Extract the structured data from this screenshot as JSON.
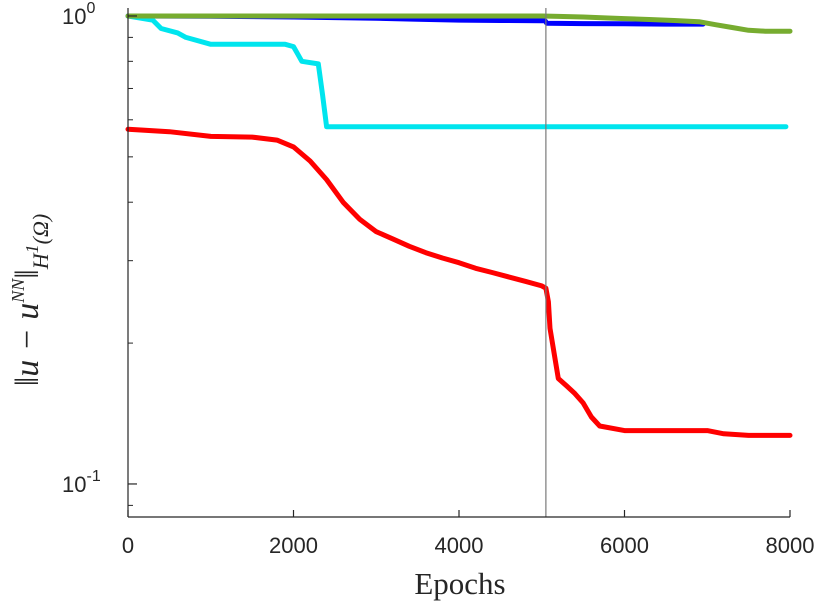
{
  "chart_data": {
    "type": "line",
    "title": "",
    "xlabel": "Epochs",
    "ylabel": {
      "main": "‖u − u",
      "sup": "NN",
      "close": "‖",
      "sub": "H",
      "sub_sup": "1",
      "sub_tail": "(Ω)"
    },
    "xscale": "linear",
    "yscale": "log",
    "xlim": [
      0,
      8000
    ],
    "ylim": [
      0.085,
      1.04
    ],
    "grid": false,
    "legend": "none",
    "x_ticks": [
      {
        "value": 0,
        "label": "0"
      },
      {
        "value": 2000,
        "label": "2000"
      },
      {
        "value": 4000,
        "label": "4000"
      },
      {
        "value": 6000,
        "label": "6000"
      },
      {
        "value": 8000,
        "label": "8000"
      }
    ],
    "y_ticks": [
      {
        "value": 1,
        "base": "10",
        "exp": "0"
      },
      {
        "value": 0.1,
        "base": "10",
        "exp": "-1"
      }
    ],
    "vline": {
      "x": 5050,
      "color": "#7a7a7a"
    },
    "series": [
      {
        "color": "#0000ff",
        "x": [
          0,
          1000,
          2000,
          3000,
          3500,
          4000,
          4500,
          5000,
          5040,
          5060,
          5500,
          6000,
          6500,
          6950
        ],
        "y": [
          1.0,
          0.999,
          0.995,
          0.989,
          0.984,
          0.98,
          0.978,
          0.977,
          0.977,
          0.965,
          0.963,
          0.962,
          0.961,
          0.961
        ]
      },
      {
        "color": "#00e5ee",
        "x": [
          0,
          300,
          400,
          600,
          700,
          1000,
          1900,
          2000,
          2050,
          2100,
          2300,
          2350,
          2400,
          3000,
          4000,
          5000,
          6000,
          7000,
          7950
        ],
        "y": [
          1.0,
          0.98,
          0.94,
          0.92,
          0.9,
          0.87,
          0.87,
          0.86,
          0.83,
          0.8,
          0.79,
          0.68,
          0.58,
          0.58,
          0.58,
          0.58,
          0.58,
          0.58,
          0.58
        ]
      },
      {
        "color": "#ff0000",
        "x": [
          0,
          500,
          1000,
          1500,
          1800,
          2000,
          2200,
          2400,
          2600,
          2800,
          3000,
          3200,
          3400,
          3600,
          3800,
          4000,
          4200,
          4400,
          4600,
          4800,
          5000,
          5050,
          5080,
          5100,
          5200,
          5300,
          5400,
          5500,
          5600,
          5700,
          6000,
          6500,
          7000,
          7200,
          7500,
          8000
        ],
        "y": [
          0.573,
          0.566,
          0.553,
          0.551,
          0.543,
          0.525,
          0.49,
          0.447,
          0.4,
          0.368,
          0.346,
          0.334,
          0.322,
          0.312,
          0.304,
          0.297,
          0.289,
          0.283,
          0.277,
          0.271,
          0.265,
          0.262,
          0.245,
          0.215,
          0.168,
          0.162,
          0.156,
          0.149,
          0.139,
          0.133,
          0.13,
          0.13,
          0.13,
          0.128,
          0.127,
          0.127
        ]
      },
      {
        "color": "#77ac30",
        "x": [
          0,
          1000,
          2000,
          3000,
          4000,
          5000,
          5200,
          5500,
          5800,
          6000,
          6300,
          6600,
          6900,
          7100,
          7300,
          7500,
          7700,
          8000
        ],
        "y": [
          1.0,
          1.0,
          1.0,
          1.0,
          1.0,
          1.0,
          0.998,
          0.995,
          0.99,
          0.987,
          0.983,
          0.978,
          0.972,
          0.958,
          0.945,
          0.932,
          0.928,
          0.928
        ]
      }
    ]
  }
}
